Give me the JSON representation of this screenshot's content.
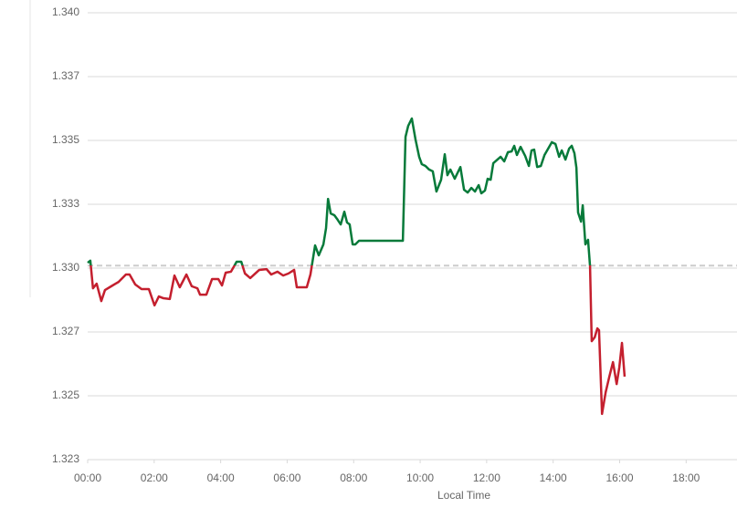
{
  "chart_data": {
    "type": "line",
    "x_label": "Local Time",
    "x": [
      0,
      0.08,
      0.16,
      0.27,
      0.41,
      0.52,
      0.71,
      0.93,
      1.15,
      1.26,
      1.43,
      1.62,
      1.84,
      2.01,
      2.14,
      2.28,
      2.47,
      2.61,
      2.77,
      2.97,
      3.13,
      3.3,
      3.38,
      3.57,
      3.74,
      3.93,
      4.04,
      4.15,
      4.31,
      4.48,
      4.62,
      4.73,
      4.89,
      5.16,
      5.38,
      5.52,
      5.71,
      5.88,
      6.04,
      6.21,
      6.29,
      6.59,
      6.7,
      6.84,
      6.95,
      7.09,
      7.17,
      7.23,
      7.31,
      7.42,
      7.5,
      7.61,
      7.72,
      7.8,
      7.88,
      7.97,
      8.05,
      8.16,
      9.48,
      9.56,
      9.64,
      9.75,
      9.86,
      9.97,
      10.05,
      10.16,
      10.27,
      10.38,
      10.49,
      10.63,
      10.74,
      10.82,
      10.91,
      11.04,
      11.21,
      11.32,
      11.43,
      11.54,
      11.65,
      11.76,
      11.84,
      11.95,
      12.03,
      12.12,
      12.2,
      12.42,
      12.53,
      12.64,
      12.75,
      12.83,
      12.91,
      13.02,
      13.16,
      13.27,
      13.35,
      13.43,
      13.52,
      13.63,
      13.74,
      13.85,
      13.96,
      14.07,
      14.18,
      14.26,
      14.37,
      14.48,
      14.56,
      14.64,
      14.7,
      14.75,
      14.84,
      14.89,
      14.97,
      15.05,
      15.11,
      15.16,
      15.25,
      15.33,
      15.38,
      15.47,
      15.58,
      15.69,
      15.8,
      15.91,
      15.99,
      16.07,
      16.15
    ],
    "series": [
      {
        "values": [
          1.33021,
          1.33029,
          1.32921,
          1.32939,
          1.32871,
          1.32914,
          1.32929,
          1.32946,
          1.32975,
          1.32975,
          1.32936,
          1.32918,
          1.32918,
          1.32854,
          1.32889,
          1.32882,
          1.32879,
          1.32971,
          1.32925,
          1.32975,
          1.32929,
          1.32921,
          1.32896,
          1.32896,
          1.32957,
          1.32957,
          1.32932,
          1.32982,
          1.32986,
          1.33025,
          1.33025,
          1.32979,
          1.32961,
          1.32993,
          1.32996,
          1.32975,
          1.32986,
          1.32971,
          1.32979,
          1.32993,
          1.32925,
          1.32925,
          1.32975,
          1.33089,
          1.3305,
          1.33093,
          1.33157,
          1.33271,
          1.33214,
          1.33207,
          1.33193,
          1.33171,
          1.33221,
          1.33179,
          1.33171,
          1.33093,
          1.33093,
          1.33107,
          1.33107,
          1.33514,
          1.33557,
          1.33586,
          1.33504,
          1.33436,
          1.33407,
          1.334,
          1.33386,
          1.33379,
          1.333,
          1.33346,
          1.33446,
          1.33364,
          1.33386,
          1.3335,
          1.33396,
          1.33307,
          1.33296,
          1.33314,
          1.333,
          1.33325,
          1.33293,
          1.33304,
          1.3335,
          1.33346,
          1.33411,
          1.33436,
          1.33418,
          1.33454,
          1.33457,
          1.33479,
          1.33443,
          1.33475,
          1.33439,
          1.334,
          1.33461,
          1.33464,
          1.33396,
          1.334,
          1.33443,
          1.33468,
          1.33493,
          1.33486,
          1.33436,
          1.33461,
          1.33425,
          1.33468,
          1.33479,
          1.3345,
          1.33393,
          1.33218,
          1.33182,
          1.33246,
          1.33093,
          1.33111,
          1.33007,
          1.32714,
          1.32729,
          1.32764,
          1.32757,
          1.32429,
          1.32514,
          1.32575,
          1.32632,
          1.32546,
          1.32611,
          1.32707,
          1.32575
        ]
      }
    ],
    "color_above": "#077a3a",
    "color_below": "#c41f2e",
    "baseline": 1.3301,
    "baseline_color": "#cccccc",
    "xlim": [
      0,
      19.53
    ],
    "xticks": [
      {
        "value": 0,
        "label": "00:00"
      },
      {
        "value": 2,
        "label": "02:00"
      },
      {
        "value": 4,
        "label": "04:00"
      },
      {
        "value": 6,
        "label": "06:00"
      },
      {
        "value": 8,
        "label": "08:00"
      },
      {
        "value": 10,
        "label": "10:00"
      },
      {
        "value": 12,
        "label": "12:00"
      },
      {
        "value": 14,
        "label": "14:00"
      },
      {
        "value": 16,
        "label": "16:00"
      },
      {
        "value": 18,
        "label": "18:00"
      }
    ],
    "ylim": [
      1.3225,
      1.34
    ],
    "yticks": [
      {
        "value": 1.34,
        "label": "1.340"
      },
      {
        "value": 1.3375,
        "label": "1.337"
      },
      {
        "value": 1.335,
        "label": "1.335"
      },
      {
        "value": 1.3325,
        "label": "1.333"
      },
      {
        "value": 1.33,
        "label": "1.330"
      },
      {
        "value": 1.3275,
        "label": "1.327"
      },
      {
        "value": 1.325,
        "label": "1.325"
      },
      {
        "value": 1.3225,
        "label": "1.323"
      }
    ],
    "grid": true
  }
}
